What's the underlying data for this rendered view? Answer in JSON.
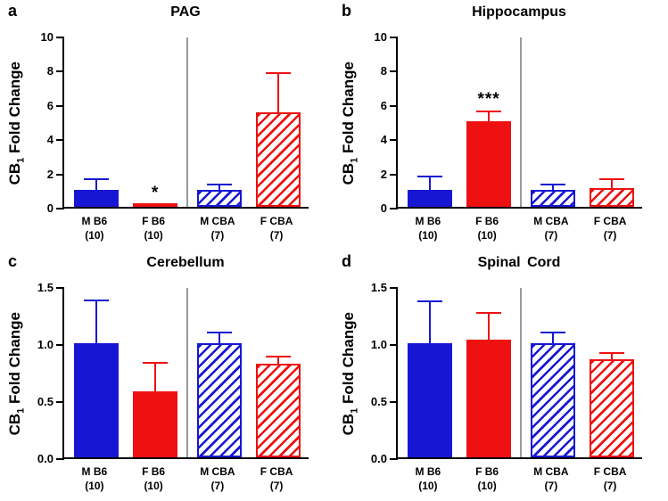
{
  "figure": {
    "background": "#ffffff",
    "ylabel": "CB1 Fold Change",
    "ylabel_parts": {
      "prefix": "CB",
      "sub": "1",
      "rest": " Fold Change"
    }
  },
  "colors": {
    "blue": "#1717d3",
    "red": "#ee1111",
    "axis": "#000000",
    "divider": "#9a9a9a"
  },
  "chart_data": [
    {
      "type": "bar",
      "panel_letter": "a",
      "title": "PAG",
      "ylabel": "CB1 Fold Change",
      "ylim": [
        0,
        10
      ],
      "yticks": [
        "0",
        "2",
        "4",
        "6",
        "8",
        "10"
      ],
      "ytick_values": [
        0,
        2,
        4,
        6,
        8,
        10
      ],
      "legend_position": "none",
      "grid": false,
      "categories": [
        {
          "line1": "M B6",
          "line2": "(10)"
        },
        {
          "line1": "F B6",
          "line2": "(10)"
        },
        {
          "line1": "M CBA",
          "line2": "(7)"
        },
        {
          "line1": "F CBA",
          "line2": "(7)"
        }
      ],
      "bars": [
        {
          "value": 1.0,
          "error_up": 0.7,
          "color": "blue",
          "hatched": false,
          "annotation": ""
        },
        {
          "value": 0.15,
          "error_up": 0.08,
          "color": "red",
          "hatched": false,
          "annotation": "*"
        },
        {
          "value": 1.0,
          "error_up": 0.4,
          "color": "blue",
          "hatched": true,
          "annotation": ""
        },
        {
          "value": 5.5,
          "error_up": 2.4,
          "color": "red",
          "hatched": true,
          "annotation": ""
        }
      ]
    },
    {
      "type": "bar",
      "panel_letter": "b",
      "title": "Hippocampus",
      "ylabel": "CB1 Fold Change",
      "ylim": [
        0,
        10
      ],
      "yticks": [
        "0",
        "2",
        "4",
        "6",
        "8",
        "10"
      ],
      "ytick_values": [
        0,
        2,
        4,
        6,
        8,
        10
      ],
      "legend_position": "none",
      "grid": false,
      "categories": [
        {
          "line1": "M B6",
          "line2": "(10)"
        },
        {
          "line1": "F B6",
          "line2": "(10)"
        },
        {
          "line1": "M CBA",
          "line2": "(7)"
        },
        {
          "line1": "F CBA",
          "line2": "(7)"
        }
      ],
      "bars": [
        {
          "value": 1.0,
          "error_up": 0.9,
          "color": "blue",
          "hatched": false,
          "annotation": ""
        },
        {
          "value": 5.0,
          "error_up": 0.7,
          "color": "red",
          "hatched": false,
          "annotation": "***"
        },
        {
          "value": 1.0,
          "error_up": 0.4,
          "color": "blue",
          "hatched": true,
          "annotation": ""
        },
        {
          "value": 1.1,
          "error_up": 0.6,
          "color": "red",
          "hatched": true,
          "annotation": ""
        }
      ]
    },
    {
      "type": "bar",
      "panel_letter": "c",
      "title": "Cerebellum",
      "ylabel": "CB1 Fold Change",
      "ylim": [
        0,
        1.5
      ],
      "yticks": [
        "0.0",
        "0.5",
        "1.0",
        "1.5"
      ],
      "ytick_values": [
        0,
        0.5,
        1.0,
        1.5
      ],
      "legend_position": "none",
      "grid": false,
      "categories": [
        {
          "line1": "M B6",
          "line2": "(10)"
        },
        {
          "line1": "F B6",
          "line2": "(10)"
        },
        {
          "line1": "M CBA",
          "line2": "(7)"
        },
        {
          "line1": "F CBA",
          "line2": "(7)"
        }
      ],
      "bars": [
        {
          "value": 1.0,
          "error_up": 0.39,
          "color": "blue",
          "hatched": false,
          "annotation": ""
        },
        {
          "value": 0.58,
          "error_up": 0.26,
          "color": "red",
          "hatched": false,
          "annotation": ""
        },
        {
          "value": 1.0,
          "error_up": 0.11,
          "color": "blue",
          "hatched": true,
          "annotation": ""
        },
        {
          "value": 0.82,
          "error_up": 0.08,
          "color": "red",
          "hatched": true,
          "annotation": ""
        }
      ]
    },
    {
      "type": "bar",
      "panel_letter": "d",
      "title": "Spinal Cord",
      "ylabel": "CB1 Fold Change",
      "ylim": [
        0,
        1.5
      ],
      "yticks": [
        "0.0",
        "0.5",
        "1.0",
        "1.5"
      ],
      "ytick_values": [
        0,
        0.5,
        1.0,
        1.5
      ],
      "legend_position": "none",
      "grid": false,
      "categories": [
        {
          "line1": "M B6",
          "line2": "(10)"
        },
        {
          "line1": "F B6",
          "line2": "(10)"
        },
        {
          "line1": "M CBA",
          "line2": "(7)"
        },
        {
          "line1": "F CBA",
          "line2": "(7)"
        }
      ],
      "bars": [
        {
          "value": 1.0,
          "error_up": 0.38,
          "color": "blue",
          "hatched": false,
          "annotation": ""
        },
        {
          "value": 1.03,
          "error_up": 0.25,
          "color": "red",
          "hatched": false,
          "annotation": ""
        },
        {
          "value": 1.0,
          "error_up": 0.11,
          "color": "blue",
          "hatched": true,
          "annotation": ""
        },
        {
          "value": 0.86,
          "error_up": 0.07,
          "color": "red",
          "hatched": true,
          "annotation": ""
        }
      ]
    }
  ]
}
